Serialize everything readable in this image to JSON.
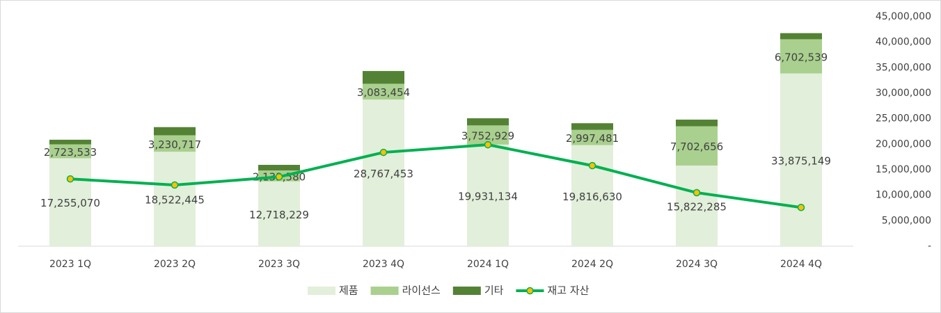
{
  "chart_data": {
    "type": "bar-line",
    "categories": [
      "2023 1Q",
      "2023 2Q",
      "2023 3Q",
      "2023 4Q",
      "2024 1Q",
      "2024 2Q",
      "2024 3Q",
      "2024 4Q"
    ],
    "series": [
      {
        "name": "제품",
        "type": "bar",
        "color": "#e2efda",
        "values": [
          17255070,
          18522445,
          12718229,
          28767453,
          19931134,
          19816630,
          15822285,
          33875149
        ],
        "value_labels": [
          "17,255,070",
          "18,522,445",
          "12,718,229",
          "28,767,453",
          "19,931,134",
          "19,816,630",
          "15,822,285",
          "33,875,149"
        ]
      },
      {
        "name": "라이선스",
        "type": "bar",
        "color": "#a9d08e",
        "values": [
          2723533,
          3230717,
          2133580,
          3083454,
          3752929,
          2997481,
          7702656,
          6702539
        ],
        "value_labels": [
          "2,723,533",
          "3,230,717",
          "2,133,580",
          "3,083,454",
          "3,752,929",
          "2,997,481",
          "7,702,656",
          "6,702,539"
        ]
      },
      {
        "name": "기타",
        "type": "bar",
        "color": "#548235",
        "values": [
          900000,
          1600000,
          1100000,
          2500000,
          1400000,
          1300000,
          1300000,
          1200000
        ]
      },
      {
        "name": "재고 자산",
        "type": "line",
        "color": "#00b050",
        "marker_color": "#ffc000",
        "values": [
          13200000,
          12000000,
          13600000,
          18400000,
          19900000,
          15800000,
          10500000,
          7600000
        ]
      }
    ],
    "ylim": [
      0,
      45000000
    ],
    "yticks": [
      {
        "value": 0,
        "label": "-"
      },
      {
        "value": 5000000,
        "label": "5,000,000"
      },
      {
        "value": 10000000,
        "label": "10,000,000"
      },
      {
        "value": 15000000,
        "label": "15,000,000"
      },
      {
        "value": 20000000,
        "label": "20,000,000"
      },
      {
        "value": 25000000,
        "label": "25,000,000"
      },
      {
        "value": 30000000,
        "label": "30,000,000"
      },
      {
        "value": 35000000,
        "label": "35,000,000"
      },
      {
        "value": 40000000,
        "label": "40,000,000"
      },
      {
        "value": 45000000,
        "label": "45,000,000"
      }
    ],
    "legend": "bottom"
  }
}
